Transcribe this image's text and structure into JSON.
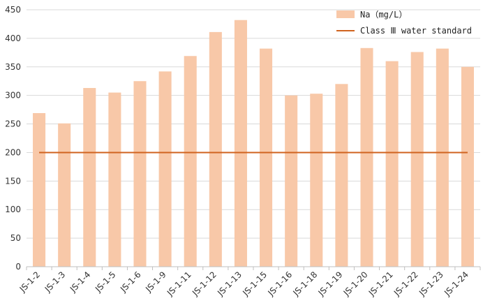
{
  "chart_data": {
    "type": "bar",
    "categories": [
      "JS-1-2",
      "JS-1-3",
      "JS-1-4",
      "JS-1-5",
      "JS-1-6",
      "JS-1-9",
      "JS-1-11",
      "JS-1-12",
      "JS-1-13",
      "JS-1-15",
      "JS-1-16",
      "JS-1-18",
      "JS-1-19",
      "JS-1-20",
      "JS-1-21",
      "JS-1-22",
      "JS-1-23",
      "JS-1-24"
    ],
    "series": [
      {
        "name": "Na（mg/L）",
        "type": "bar",
        "color": "#f8c8a8",
        "values": [
          269,
          251,
          313,
          305,
          325,
          342,
          369,
          411,
          432,
          382,
          300,
          303,
          320,
          383,
          360,
          376,
          382,
          350
        ]
      },
      {
        "name": "Class Ⅲ water standard",
        "type": "line",
        "color": "#d0631f",
        "values": [
          200,
          200,
          200,
          200,
          200,
          200,
          200,
          200,
          200,
          200,
          200,
          200,
          200,
          200,
          200,
          200,
          200,
          200
        ]
      }
    ],
    "ylim": [
      0,
      450
    ],
    "yticks": [
      0,
      50,
      100,
      150,
      200,
      250,
      300,
      350,
      400,
      450
    ],
    "grid": true,
    "legend_position": "top-right",
    "title": "",
    "xlabel": "",
    "ylabel": ""
  }
}
